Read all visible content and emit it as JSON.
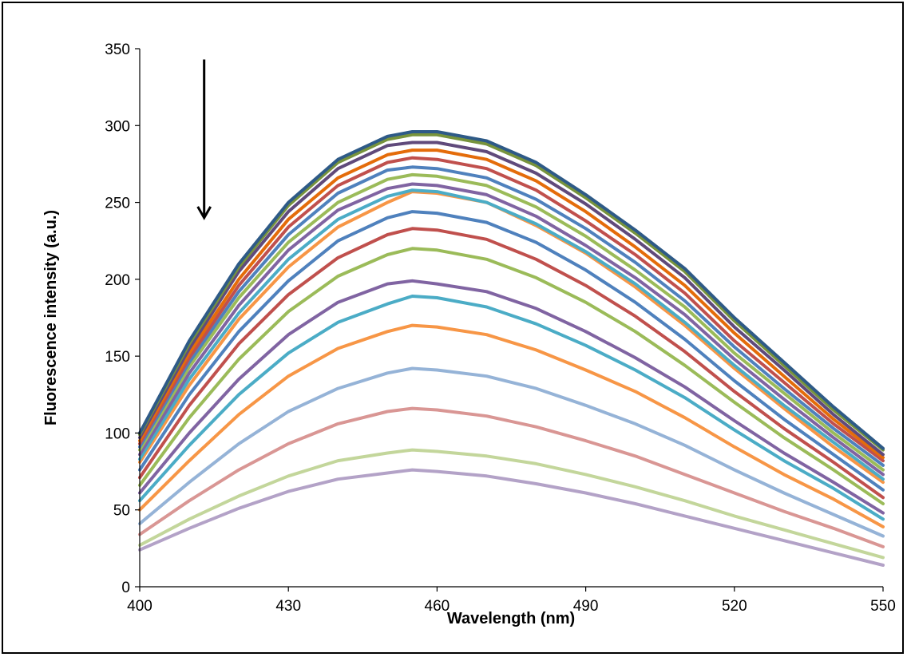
{
  "chart_data": {
    "type": "line",
    "title": "",
    "xlabel": "Wavelength (nm)",
    "ylabel": "Fluorescence intensity (a.u.)",
    "xlim": [
      400,
      550
    ],
    "ylim": [
      0,
      350
    ],
    "x_ticks": [
      400,
      430,
      460,
      490,
      520,
      550
    ],
    "y_ticks": [
      0,
      50,
      100,
      150,
      200,
      250,
      300,
      350
    ],
    "grid": false,
    "legend": "none",
    "annotation": {
      "type": "arrow",
      "direction": "down",
      "meaning": "decreasing intensity",
      "from": [
        413,
        343
      ],
      "to": [
        413,
        240
      ]
    },
    "x": [
      400,
      410,
      420,
      430,
      440,
      450,
      455,
      460,
      470,
      480,
      490,
      500,
      510,
      520,
      530,
      540,
      550
    ],
    "series": [
      {
        "color": "#2E5A87",
        "values": [
          100,
          160,
          210,
          250,
          278,
          293,
          296,
          296,
          290,
          276,
          255,
          232,
          207,
          175,
          146,
          117,
          90
        ]
      },
      {
        "color": "#77933C",
        "values": [
          99,
          158,
          208,
          248,
          276,
          291,
          294,
          294,
          288,
          274,
          253,
          230,
          205,
          173,
          144,
          115,
          89
        ]
      },
      {
        "color": "#604A7B",
        "values": [
          97,
          155,
          205,
          244,
          272,
          287,
          289,
          289,
          283,
          269,
          249,
          226,
          201,
          169,
          141,
          112,
          86
        ]
      },
      {
        "color": "#E46C0A",
        "values": [
          95,
          152,
          200,
          239,
          266,
          281,
          284,
          284,
          278,
          264,
          244,
          221,
          196,
          165,
          137,
          109,
          84
        ]
      },
      {
        "color": "#C0504D",
        "values": [
          93,
          149,
          196,
          234,
          261,
          276,
          279,
          278,
          272,
          258,
          238,
          216,
          191,
          160,
          133,
          106,
          82
        ]
      },
      {
        "color": "#4F81BD",
        "values": [
          91,
          146,
          192,
          229,
          256,
          271,
          273,
          272,
          266,
          252,
          233,
          211,
          186,
          156,
          129,
          103,
          79
        ]
      },
      {
        "color": "#9BBB59",
        "values": [
          89,
          143,
          188,
          224,
          250,
          265,
          268,
          267,
          261,
          247,
          228,
          206,
          182,
          152,
          126,
          100,
          76
        ]
      },
      {
        "color": "#8064A2",
        "values": [
          86,
          139,
          183,
          219,
          245,
          259,
          262,
          261,
          255,
          241,
          222,
          201,
          177,
          148,
          122,
          97,
          73
        ]
      },
      {
        "color": "#4BACC6",
        "values": [
          83,
          135,
          178,
          213,
          239,
          254,
          258,
          257,
          250,
          236,
          218,
          197,
          172,
          144,
          118,
          94,
          70
        ]
      },
      {
        "color": "#F79646",
        "values": [
          81,
          131,
          174,
          208,
          234,
          250,
          257,
          256,
          250,
          235,
          217,
          195,
          170,
          142,
          116,
          91,
          68
        ]
      },
      {
        "color": "#4F81BD",
        "values": [
          76,
          125,
          166,
          199,
          225,
          240,
          244,
          243,
          237,
          224,
          206,
          185,
          161,
          134,
          109,
          86,
          63
        ]
      },
      {
        "color": "#C0504D",
        "values": [
          71,
          118,
          158,
          190,
          214,
          229,
          233,
          232,
          226,
          213,
          196,
          176,
          153,
          127,
          103,
          81,
          58
        ]
      },
      {
        "color": "#9BBB59",
        "values": [
          66,
          110,
          148,
          179,
          202,
          216,
          220,
          219,
          213,
          201,
          185,
          166,
          144,
          120,
          97,
          76,
          54
        ]
      },
      {
        "color": "#8064A2",
        "values": [
          61,
          100,
          135,
          164,
          185,
          197,
          199,
          197,
          192,
          181,
          166,
          149,
          130,
          108,
          87,
          68,
          48
        ]
      },
      {
        "color": "#4BACC6",
        "values": [
          56,
          92,
          125,
          152,
          172,
          184,
          189,
          188,
          182,
          171,
          157,
          141,
          123,
          102,
          82,
          64,
          44
        ]
      },
      {
        "color": "#F79646",
        "values": [
          50,
          82,
          112,
          137,
          155,
          166,
          170,
          169,
          164,
          154,
          141,
          127,
          110,
          91,
          73,
          57,
          39
        ]
      },
      {
        "color": "#95B3D7",
        "values": [
          41,
          68,
          93,
          114,
          129,
          139,
          142,
          141,
          137,
          129,
          118,
          106,
          92,
          76,
          61,
          47,
          33
        ]
      },
      {
        "color": "#D99694",
        "values": [
          34,
          56,
          76,
          93,
          106,
          114,
          116,
          115,
          111,
          104,
          95,
          85,
          73,
          61,
          49,
          38,
          26
        ]
      },
      {
        "color": "#C3D69B",
        "values": [
          27,
          44,
          59,
          72,
          82,
          87,
          89,
          88,
          85,
          80,
          73,
          65,
          56,
          46,
          37,
          28,
          19
        ]
      },
      {
        "color": "#B3A2C7",
        "values": [
          24,
          38,
          51,
          62,
          70,
          74,
          76,
          75,
          72,
          67,
          61,
          54,
          46,
          38,
          30,
          22,
          14
        ]
      }
    ]
  }
}
